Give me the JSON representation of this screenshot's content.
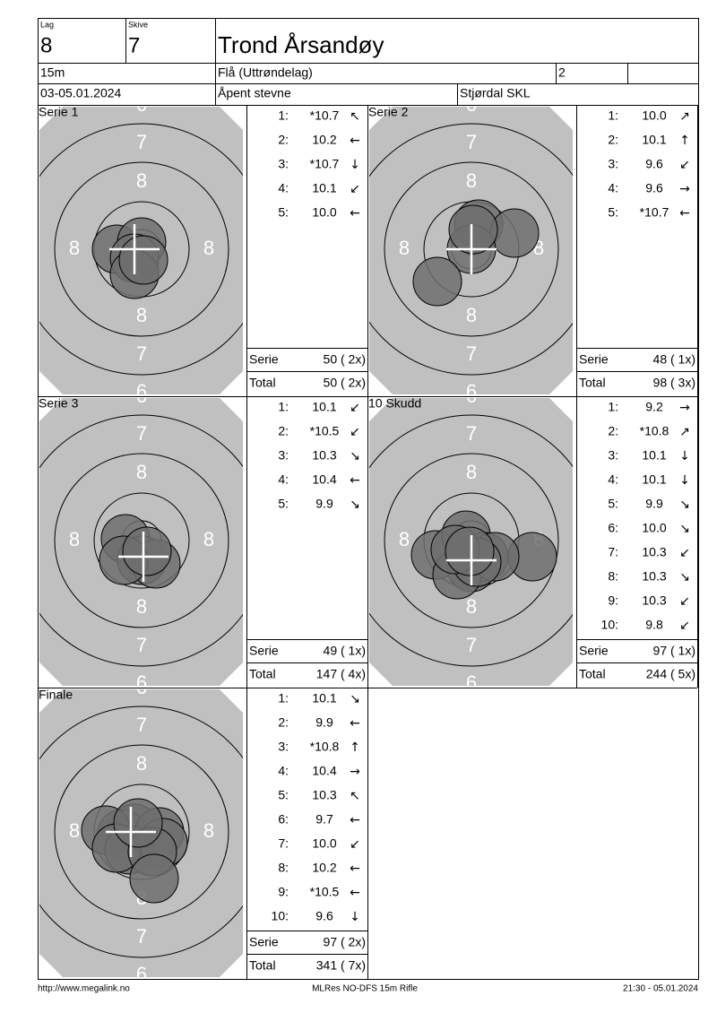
{
  "header": {
    "lag_label": "Lag",
    "lag": "8",
    "skive_label": "Skive",
    "skive": "7",
    "name": "Trond Årsandøy",
    "distance": "15m",
    "club": "Flå (Uttrøndelag)",
    "class": "2",
    "date": "03-05.01.2024",
    "event": "Åpent stevne",
    "organizer": "Stjørdal SKL"
  },
  "target_labels": {
    "r8": "8",
    "r7": "7",
    "r6": "6"
  },
  "panels": [
    {
      "title": "Serie 1",
      "shots": [
        {
          "no": "1:",
          "score": "*10.7",
          "dir": "↖"
        },
        {
          "no": "2:",
          "score": "10.2",
          "dir": "←"
        },
        {
          "no": "3:",
          "score": "*10.7",
          "dir": "↓"
        },
        {
          "no": "4:",
          "score": "10.1",
          "dir": "↙"
        },
        {
          "no": "5:",
          "score": "10.0",
          "dir": "←"
        }
      ],
      "serie_label": "Serie",
      "serie": "50 ( 2x)",
      "total_label": "Total",
      "total": "50 ( 2x)"
    },
    {
      "title": "Serie 2",
      "shots": [
        {
          "no": "1:",
          "score": "10.0",
          "dir": "↗"
        },
        {
          "no": "2:",
          "score": "10.1",
          "dir": "↑"
        },
        {
          "no": "3:",
          "score": "9.6",
          "dir": "↙"
        },
        {
          "no": "4:",
          "score": "9.6",
          "dir": "→"
        },
        {
          "no": "5:",
          "score": "*10.7",
          "dir": "←"
        }
      ],
      "serie_label": "Serie",
      "serie": "48 ( 1x)",
      "total_label": "Total",
      "total": "98 ( 3x)"
    },
    {
      "title": "Serie 3",
      "shots": [
        {
          "no": "1:",
          "score": "10.1",
          "dir": "↙"
        },
        {
          "no": "2:",
          "score": "*10.5",
          "dir": "↙"
        },
        {
          "no": "3:",
          "score": "10.3",
          "dir": "↘"
        },
        {
          "no": "4:",
          "score": "10.4",
          "dir": "←"
        },
        {
          "no": "5:",
          "score": "9.9",
          "dir": "↘"
        }
      ],
      "serie_label": "Serie",
      "serie": "49 ( 1x)",
      "total_label": "Total",
      "total": "147 ( 4x)"
    },
    {
      "title": "10 Skudd",
      "shots": [
        {
          "no": "1:",
          "score": "9.2",
          "dir": "→"
        },
        {
          "no": "2:",
          "score": "*10.8",
          "dir": "↗"
        },
        {
          "no": "3:",
          "score": "10.1",
          "dir": "↓"
        },
        {
          "no": "4:",
          "score": "10.1",
          "dir": "↓"
        },
        {
          "no": "5:",
          "score": "9.9",
          "dir": "↘"
        },
        {
          "no": "6:",
          "score": "10.0",
          "dir": "↘"
        },
        {
          "no": "7:",
          "score": "10.3",
          "dir": "↙"
        },
        {
          "no": "8:",
          "score": "10.3",
          "dir": "↘"
        },
        {
          "no": "9:",
          "score": "10.3",
          "dir": "↙"
        },
        {
          "no": "10:",
          "score": "9.8",
          "dir": "↙"
        }
      ],
      "serie_label": "Serie",
      "serie": "97 ( 1x)",
      "total_label": "Total",
      "total": "244 ( 5x)"
    },
    {
      "title": "Finale",
      "shots": [
        {
          "no": "1:",
          "score": "10.1",
          "dir": "↘"
        },
        {
          "no": "2:",
          "score": "9.9",
          "dir": "←"
        },
        {
          "no": "3:",
          "score": "*10.8",
          "dir": "↑"
        },
        {
          "no": "4:",
          "score": "10.4",
          "dir": "→"
        },
        {
          "no": "5:",
          "score": "10.3",
          "dir": "↖"
        },
        {
          "no": "6:",
          "score": "9.7",
          "dir": "←"
        },
        {
          "no": "7:",
          "score": "10.0",
          "dir": "↙"
        },
        {
          "no": "8:",
          "score": "10.2",
          "dir": "←"
        },
        {
          "no": "9:",
          "score": "*10.5",
          "dir": "←"
        },
        {
          "no": "10:",
          "score": "9.6",
          "dir": "↓"
        }
      ],
      "serie_label": "Serie",
      "serie": "97 ( 2x)",
      "total_label": "Total",
      "total": "341 ( 7x)"
    }
  ],
  "footer": {
    "url": "http://www.megalink.no",
    "program": "MLRes NO-DFS 15m Rifle",
    "timestamp": "21:30 - 05.01.2024"
  }
}
